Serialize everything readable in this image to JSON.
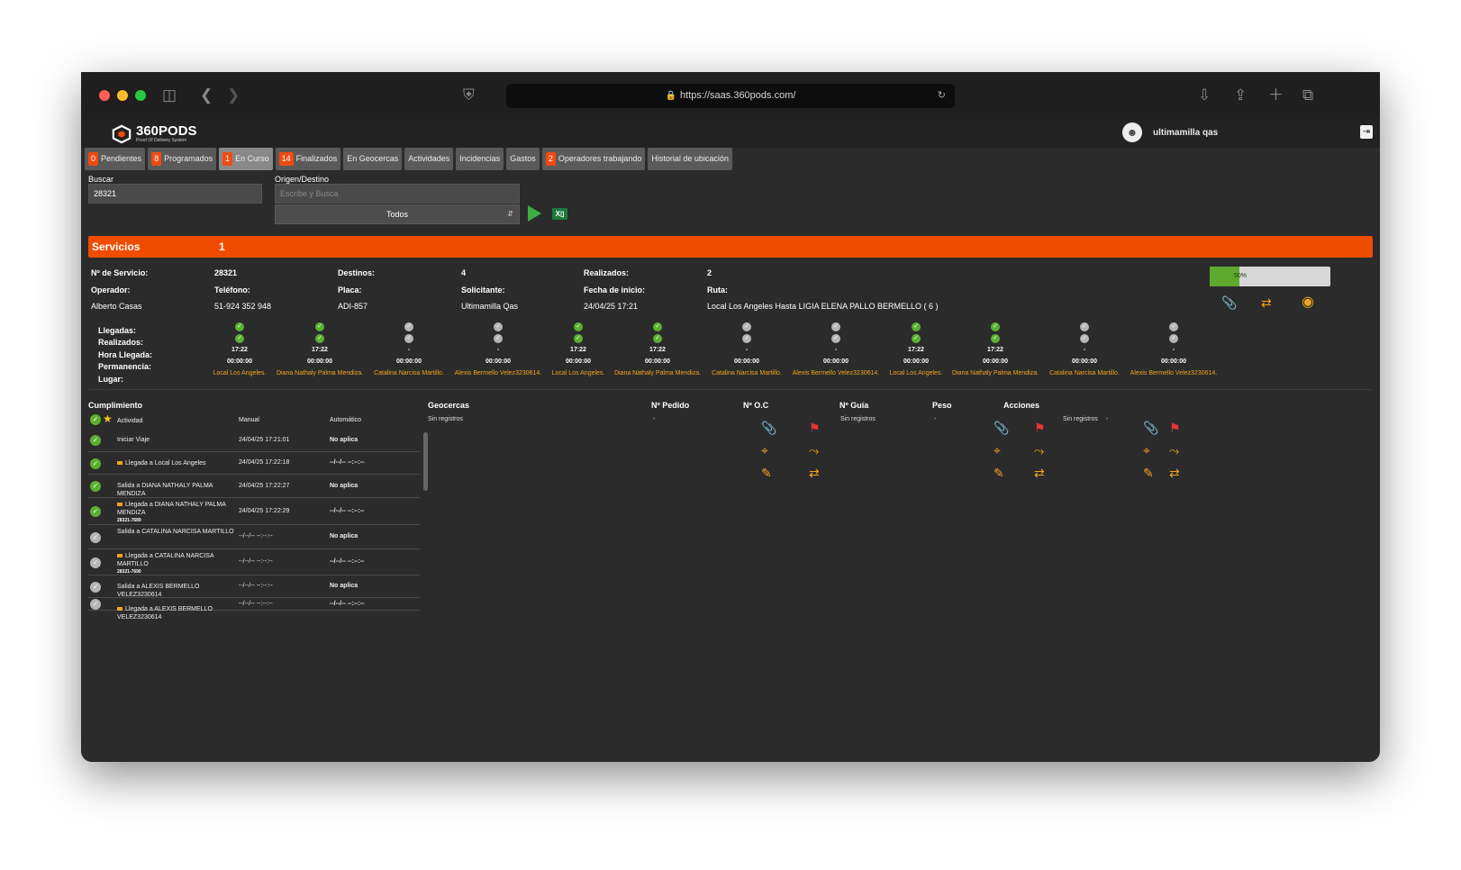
{
  "browser": {
    "url": "https://saas.360pods.com/"
  },
  "app": {
    "logo_name": "360PODS",
    "logo_sub": "Proof Of Delivery System",
    "user_name": "ultimamilla qas"
  },
  "tabs": [
    {
      "badge": "0",
      "label": "Pendientes"
    },
    {
      "badge": "8",
      "label": "Programados"
    },
    {
      "badge": "1",
      "label": "En Curso"
    },
    {
      "badge": "14",
      "label": "Finalizados"
    },
    {
      "badge": "",
      "label": "En Geocercas"
    },
    {
      "badge": "",
      "label": "Actividades"
    },
    {
      "badge": "",
      "label": "Incidencias"
    },
    {
      "badge": "",
      "label": "Gastos"
    },
    {
      "badge": "2",
      "label": "Operadores trabajando"
    },
    {
      "badge": "",
      "label": "Historial de ubicación"
    }
  ],
  "filters": {
    "search_label": "Buscar",
    "search_value": "28321",
    "origin_label": "Origen/Destino",
    "origin_placeholder": "Escribe y Busca",
    "select_value": "Todos"
  },
  "services": {
    "title": "Servicios",
    "count": "1"
  },
  "service": {
    "num_label": "Nº de Servicio:",
    "num_value": "28321",
    "dest_label": "Destinos:",
    "dest_value": "4",
    "done_label": "Realizados:",
    "done_value": "2",
    "op_label": "Operador:",
    "op_value": "Alberto Casas",
    "tel_label": "Teléfono:",
    "tel_value": "51-924 352 948",
    "plate_label": "Placa:",
    "plate_value": "ADI-857",
    "req_label": "Solicitante:",
    "req_value": "Ultimamilla Qas",
    "date_label": "Fecha de inicio:",
    "date_value": "24/04/25 17:21",
    "route_label": "Ruta:",
    "route_value": "Local Los Angeles Hasta LIGIA ELENA PALLO BERMELLO ( 6 )",
    "progress_text": "50%",
    "progress_value": 0.5
  },
  "rows": {
    "arrivals": "Llegadas:",
    "done": "Realizados:",
    "hour": "Hora Llegada:",
    "stay": "Permanencia:",
    "place": "Lugar:"
  },
  "stops": [
    {
      "llegada": true,
      "realizado": true,
      "hora": "17:22",
      "permanencia": "00:00:00",
      "lugar": "Local Los Angeles."
    },
    {
      "llegada": true,
      "realizado": true,
      "hora": "17:22",
      "permanencia": "00:00:00",
      "lugar": "Diana Nathaly Palma Mendiza."
    },
    {
      "llegada": false,
      "realizado": false,
      "hora": "-",
      "permanencia": "00:00:00",
      "lugar": "Catalina Narcisa Martillo."
    },
    {
      "llegada": false,
      "realizado": false,
      "hora": "-",
      "permanencia": "00:00:00",
      "lugar": "Alexis Bermello Velez3230614."
    },
    {
      "llegada": true,
      "realizado": true,
      "hora": "17:22",
      "permanencia": "00:00:00",
      "lugar": "Local Los Angeles."
    },
    {
      "llegada": true,
      "realizado": true,
      "hora": "17:22",
      "permanencia": "00:00:00",
      "lugar": "Diana Nathaly Palma Mendiza."
    },
    {
      "llegada": false,
      "realizado": false,
      "hora": "-",
      "permanencia": "00:00:00",
      "lugar": "Catalina Narcisa Martillo."
    },
    {
      "llegada": false,
      "realizado": false,
      "hora": "-",
      "permanencia": "00:00:00",
      "lugar": "Alexis Bermello Velez3230614."
    },
    {
      "llegada": true,
      "realizado": true,
      "hora": "17:22",
      "permanencia": "00:00:00",
      "lugar": "Local Los Angeles."
    },
    {
      "llegada": true,
      "realizado": true,
      "hora": "17:22",
      "permanencia": "00:00:00",
      "lugar": "Diana Nathaly Palma Mendiza."
    },
    {
      "llegada": false,
      "realizado": false,
      "hora": "-",
      "permanencia": "00:00:00",
      "lugar": "Catalina Narcisa Martillo."
    },
    {
      "llegada": false,
      "realizado": false,
      "hora": "-",
      "permanencia": "00:00:00",
      "lugar": "Alexis Bermello Velez3230614."
    }
  ],
  "cumplimiento": {
    "title": "Cumplimiento",
    "col_activity": "Actividad",
    "col_manual": "Manual",
    "col_auto": "Automático",
    "items": [
      {
        "done": true,
        "flag": false,
        "activity": "Iniciar Viaje",
        "sub": "",
        "manual": "24/04/25 17:21:01",
        "auto": "No aplica"
      },
      {
        "done": true,
        "flag": true,
        "activity": "Llegada a Local Los Angeles",
        "sub": "",
        "manual": "24/04/25 17:22:18",
        "auto": "--/--/-- --:--:--"
      },
      {
        "done": true,
        "flag": false,
        "activity": "Salida a DIANA NATHALY PALMA MENDIZA",
        "sub": "",
        "manual": "24/04/25 17:22:27",
        "auto": "No aplica"
      },
      {
        "done": true,
        "flag": true,
        "activity": "Llegada a DIANA NATHALY PALMA MENDIZA",
        "sub": "28321-7689",
        "manual": "24/04/25 17:22:29",
        "auto": "--/--/-- --:--:--"
      },
      {
        "done": false,
        "flag": false,
        "activity": "Salida a CATALINA NARCISA MARTILLO",
        "sub": "",
        "manual": "--/--/-- --:--:--",
        "auto": "No aplica"
      },
      {
        "done": false,
        "flag": true,
        "activity": "Llegada a CATALINA NARCISA MARTILLO",
        "sub": "28321-7690",
        "manual": "--/--/-- --:--:--",
        "auto": "--/--/-- --:--:--"
      },
      {
        "done": false,
        "flag": false,
        "activity": "Salida a ALEXIS BERMELLO VELEZ3230614",
        "sub": "",
        "manual": "--/--/-- --:--:--",
        "auto": "No aplica"
      },
      {
        "done": false,
        "flag": true,
        "activity": "Llegada a ALEXIS BERMELLO VELEZ3230614",
        "sub": "",
        "manual": "--/--/-- --:--:--",
        "auto": "--/--/-- --:--:--"
      }
    ]
  },
  "details": {
    "geocercas": "Geocercas",
    "geo_value": "Sin registros",
    "pedido": "Nº Pedido",
    "pedido_value": "-",
    "oc": "Nº O.C",
    "guia": "Nº Guía",
    "guia_value": "Sin registros",
    "peso": "Peso",
    "peso_value": "-",
    "acciones": "Acciones",
    "acc_value": "Sin registros",
    "acc_dash": "-"
  }
}
